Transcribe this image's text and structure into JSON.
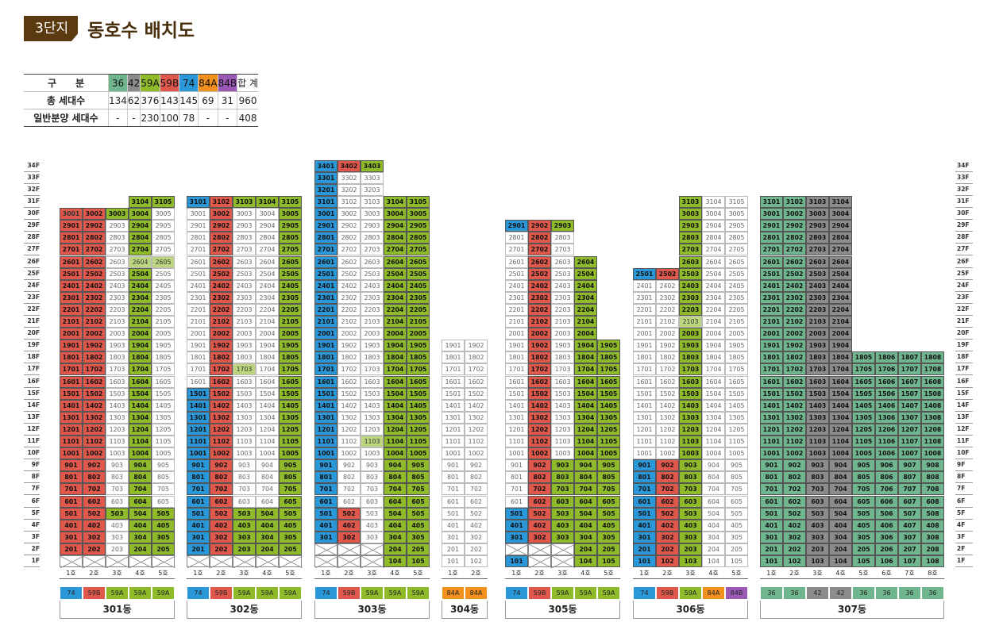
{
  "header": {
    "badge": "3단지",
    "title": "동호수 배치도"
  },
  "summary": {
    "head_label": "구　　분",
    "types": [
      {
        "name": "36",
        "color": "#6fb58e",
        "total": "134",
        "general": "-"
      },
      {
        "name": "42",
        "color": "#8c8c8c",
        "total": "62",
        "general": "-"
      },
      {
        "name": "59A",
        "color": "#8fba2a",
        "total": "376",
        "general": "230"
      },
      {
        "name": "59B",
        "color": "#e0584c",
        "total": "143",
        "general": "100"
      },
      {
        "name": "74",
        "color": "#2a97d9",
        "total": "145",
        "general": "78"
      },
      {
        "name": "84A",
        "color": "#f1901c",
        "total": "69",
        "general": "-"
      },
      {
        "name": "84B",
        "color": "#9b59b6",
        "total": "31",
        "general": "-"
      }
    ],
    "sum_label": "합  계",
    "total_label": "총 세대수",
    "general_label": "일반분양 세대수",
    "sum_total": "960",
    "sum_general": "408"
  },
  "floors": [
    "34F",
    "33F",
    "32F",
    "31F",
    "30F",
    "29F",
    "28F",
    "27F",
    "26F",
    "25F",
    "24F",
    "23F",
    "22F",
    "21F",
    "20F",
    "19F",
    "18F",
    "17F",
    "16F",
    "15F",
    "14F",
    "13F",
    "12F",
    "11F",
    "10F",
    "9F",
    "8F",
    "7F",
    "6F",
    "5F",
    "4F",
    "3F",
    "2F",
    "1F"
  ],
  "ho_suffix": "호",
  "buildings": [
    {
      "name": "301동",
      "types": [
        "74",
        "59B",
        "59A",
        "59A",
        "59A"
      ],
      "lines": [
        {
          "b": 2,
          "t": 30,
          "x": [],
          "s": [
            [
              30,
              30,
              "74"
            ],
            [
              2,
              29,
              "74",
              1
            ],
            [
              2,
              30,
              "59B",
              1
            ]
          ]
        },
        {
          "b": 2,
          "t": 30,
          "x": [],
          "s": [
            [
              2,
              30,
              "59B",
              1
            ]
          ]
        },
        {
          "b": 2,
          "t": 30,
          "x": [],
          "s": [
            [
              5,
              5,
              "59A",
              1
            ],
            [
              30,
              30,
              "59A",
              1
            ]
          ]
        },
        {
          "b": 2,
          "t": 31,
          "x": [],
          "s": [
            [
              2,
              31,
              "59A",
              1
            ],
            [
              26,
              26,
              "59A"
            ]
          ]
        },
        {
          "b": 2,
          "t": 31,
          "x": [],
          "s": [
            [
              2,
              5,
              "59A",
              1
            ],
            [
              31,
              31,
              "59A",
              1
            ],
            [
              26,
              26,
              "59A"
            ]
          ]
        }
      ]
    },
    {
      "name": "302동",
      "types": [
        "74",
        "59B",
        "59A",
        "59A",
        "59A"
      ],
      "lines": [
        {
          "b": 2,
          "t": 31,
          "x": [],
          "s": [
            [
              31,
              31,
              "74",
              1
            ],
            [
              2,
              15,
              "74",
              1
            ],
            [
              2,
              6,
              "74",
              1
            ]
          ]
        },
        {
          "b": 2,
          "t": 31,
          "x": [],
          "s": [
            [
              2,
              31,
              "59B",
              1
            ]
          ]
        },
        {
          "b": 2,
          "t": 31,
          "x": [],
          "s": [
            [
              31,
              31,
              "59A",
              1
            ],
            [
              2,
              5,
              "59A",
              1
            ],
            [
              17,
              17,
              "59A"
            ]
          ]
        },
        {
          "b": 2,
          "t": 31,
          "x": [],
          "s": [
            [
              31,
              31,
              "59A",
              1
            ],
            [
              2,
              5,
              "59A",
              1
            ]
          ]
        },
        {
          "b": 2,
          "t": 31,
          "x": [],
          "s": [
            [
              2,
              31,
              "59A",
              1
            ]
          ]
        }
      ]
    },
    {
      "name": "303동",
      "types": [
        "74",
        "59B",
        "59A",
        "59A",
        "59A"
      ],
      "lines": [
        {
          "b": 3,
          "t": 34,
          "x": [
            1,
            2
          ],
          "s": [
            [
              3,
              34,
              "74",
              1
            ]
          ]
        },
        {
          "b": 3,
          "t": 34,
          "x": [
            1,
            2
          ],
          "s": [
            [
              34,
              34,
              "59B",
              1
            ],
            [
              3,
              5,
              "59B",
              1
            ]
          ]
        },
        {
          "b": 3,
          "t": 34,
          "x": [
            1,
            2
          ],
          "s": [
            [
              34,
              34,
              "59A",
              1
            ],
            [
              11,
              11,
              "59A"
            ]
          ]
        },
        {
          "b": 1,
          "t": 31,
          "x": [],
          "s": [
            [
              1,
              31,
              "59A",
              1
            ]
          ]
        },
        {
          "b": 1,
          "t": 31,
          "x": [],
          "s": [
            [
              1,
              31,
              "59A",
              1
            ]
          ]
        }
      ]
    },
    {
      "name": "304동",
      "types": [
        "84A",
        "84A"
      ],
      "lines": [
        {
          "b": 1,
          "t": 19,
          "x": [],
          "s": []
        },
        {
          "b": 1,
          "t": 19,
          "x": [],
          "s": []
        }
      ]
    },
    {
      "name": "305동",
      "types": [
        "74",
        "59B",
        "59A",
        "59A",
        "59A"
      ],
      "lines": [
        {
          "b": 1,
          "t": 29,
          "x": [
            2
          ],
          "s": [
            [
              29,
              29,
              "74",
              1
            ],
            [
              1,
              5,
              "74",
              1
            ]
          ]
        },
        {
          "b": 1,
          "t": 29,
          "x": [
            1,
            2
          ],
          "s": [
            [
              29,
              29,
              "59B",
              1
            ],
            [
              3,
              29,
              "59B",
              1
            ]
          ]
        },
        {
          "b": 1,
          "t": 29,
          "x": [
            1,
            2
          ],
          "s": [
            [
              29,
              29,
              "59A",
              1
            ],
            [
              3,
              9,
              "59A",
              1
            ]
          ]
        },
        {
          "b": 1,
          "t": 26,
          "x": [],
          "s": [
            [
              1,
              26,
              "59A",
              1
            ]
          ]
        },
        {
          "b": 1,
          "t": 19,
          "x": [],
          "s": [
            [
              1,
              19,
              "59A",
              1
            ]
          ]
        }
      ]
    },
    {
      "name": "306동",
      "types": [
        "74",
        "59B",
        "59A",
        "84A",
        "84B"
      ],
      "lines": [
        {
          "b": 1,
          "t": 25,
          "x": [],
          "s": [
            [
              25,
              25,
              "74",
              1
            ],
            [
              1,
              9,
              "74",
              1
            ]
          ]
        },
        {
          "b": 1,
          "t": 25,
          "x": [],
          "s": [
            [
              25,
              25,
              "59B",
              1
            ],
            [
              1,
              9,
              "59B",
              1
            ]
          ]
        },
        {
          "b": 1,
          "t": 31,
          "x": [],
          "s": [
            [
              1,
              31,
              "59A",
              1
            ],
            [
              21,
              21,
              "59A"
            ]
          ]
        },
        {
          "b": 1,
          "t": 31,
          "x": [],
          "s": []
        },
        {
          "b": 1,
          "t": 31,
          "x": [],
          "s": []
        }
      ]
    },
    {
      "name": "307동",
      "types": [
        "36",
        "36",
        "42",
        "42",
        "36",
        "36",
        "36",
        "36"
      ],
      "lines": [
        {
          "b": 1,
          "t": 31,
          "x": [],
          "s": [
            [
              1,
              31,
              "36",
              1
            ]
          ]
        },
        {
          "b": 1,
          "t": 31,
          "x": [],
          "s": [
            [
              1,
              31,
              "36",
              1
            ]
          ]
        },
        {
          "b": 1,
          "t": 31,
          "x": [],
          "s": [
            [
              1,
              31,
              "42",
              1
            ]
          ]
        },
        {
          "b": 1,
          "t": 31,
          "x": [],
          "s": [
            [
              1,
              31,
              "42",
              1
            ]
          ]
        },
        {
          "b": 1,
          "t": 18,
          "x": [],
          "s": [
            [
              1,
              18,
              "36",
              1
            ]
          ]
        },
        {
          "b": 1,
          "t": 18,
          "x": [],
          "s": [
            [
              1,
              18,
              "36",
              1
            ]
          ]
        },
        {
          "b": 1,
          "t": 18,
          "x": [],
          "s": [
            [
              1,
              18,
              "36",
              1
            ]
          ]
        },
        {
          "b": 1,
          "t": 18,
          "x": [],
          "s": [
            [
              1,
              18,
              "36",
              1
            ]
          ]
        }
      ]
    }
  ]
}
